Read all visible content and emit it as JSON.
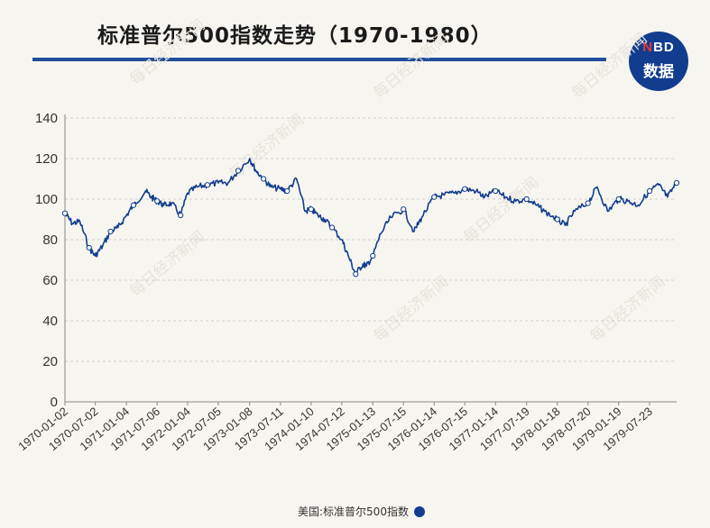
{
  "header": {
    "title": "标准普尔500指数走势（1970-1980）",
    "logo_top": "NBD",
    "logo_bottom": "数据"
  },
  "watermark": "每日经济新闻",
  "colors": {
    "line": "#123d8f",
    "title_rule": "#1f4e9c",
    "grid": "#cfcfcf"
  },
  "chart_data": {
    "type": "line",
    "title": "标准普尔500指数走势（1970-1980）",
    "xlabel": "",
    "ylabel": "",
    "ylim": [
      0,
      140
    ],
    "yticks": [
      0,
      20,
      40,
      60,
      80,
      100,
      120,
      140
    ],
    "x_tick_labels": [
      "1970-01-02",
      "1970-07-02",
      "1971-01-04",
      "1971-07-06",
      "1972-01-04",
      "1972-07-05",
      "1973-01-08",
      "1973-07-11",
      "1974-01-10",
      "1974-07-12",
      "1975-01-13",
      "1975-07-15",
      "1976-01-14",
      "1976-07-15",
      "1977-01-14",
      "1977-07-19",
      "1978-01-18",
      "1978-07-20",
      "1979-01-19",
      "1979-07-23"
    ],
    "grid": true,
    "legend": "bottom-center",
    "series": [
      {
        "name": "美国:标准普尔500指数",
        "x": [
          "1970-01-02",
          "1970-02-15",
          "1970-04-01",
          "1970-05-26",
          "1970-07-02",
          "1970-08-15",
          "1970-10-01",
          "1970-11-15",
          "1971-01-04",
          "1971-02-15",
          "1971-04-28",
          "1971-06-01",
          "1971-07-06",
          "1971-08-15",
          "1971-10-01",
          "1971-11-23",
          "1972-01-04",
          "1972-03-01",
          "1972-05-01",
          "1972-07-05",
          "1972-09-01",
          "1972-11-01",
          "1973-01-08",
          "1973-02-15",
          "1973-04-01",
          "1973-05-15",
          "1973-07-11",
          "1973-08-20",
          "1973-10-15",
          "1973-12-05",
          "1974-01-10",
          "1974-02-20",
          "1974-04-01",
          "1974-05-15",
          "1974-07-12",
          "1974-08-20",
          "1974-10-03",
          "1974-11-15",
          "1974-12-06",
          "1975-01-13",
          "1975-03-01",
          "1975-05-01",
          "1975-07-15",
          "1975-09-16",
          "1975-11-01",
          "1976-01-14",
          "1976-03-15",
          "1976-05-15",
          "1976-07-15",
          "1976-09-21",
          "1976-11-10",
          "1977-01-14",
          "1977-03-15",
          "1977-05-15",
          "1977-07-19",
          "1977-09-15",
          "1977-11-02",
          "1978-01-18",
          "1978-03-06",
          "1978-05-01",
          "1978-07-20",
          "1978-09-12",
          "1978-11-14",
          "1979-01-19",
          "1979-03-15",
          "1979-05-15",
          "1979-07-23",
          "1979-09-15",
          "1979-11-07",
          "1979-12-31"
        ],
        "values": [
          93,
          88,
          89,
          76,
          72,
          77,
          84,
          86,
          92,
          97,
          104,
          101,
          99,
          97,
          98,
          92,
          103,
          106,
          107,
          108,
          108,
          114,
          120,
          114,
          110,
          106,
          105,
          104,
          110,
          94,
          95,
          92,
          90,
          86,
          80,
          72,
          63,
          68,
          67,
          72,
          83,
          91,
          95,
          84,
          91,
          101,
          102,
          103,
          105,
          104,
          101,
          104,
          101,
          99,
          100,
          97,
          94,
          90,
          87,
          94,
          98,
          106,
          94,
          100,
          99,
          97,
          104,
          107,
          101,
          108
        ]
      }
    ]
  }
}
